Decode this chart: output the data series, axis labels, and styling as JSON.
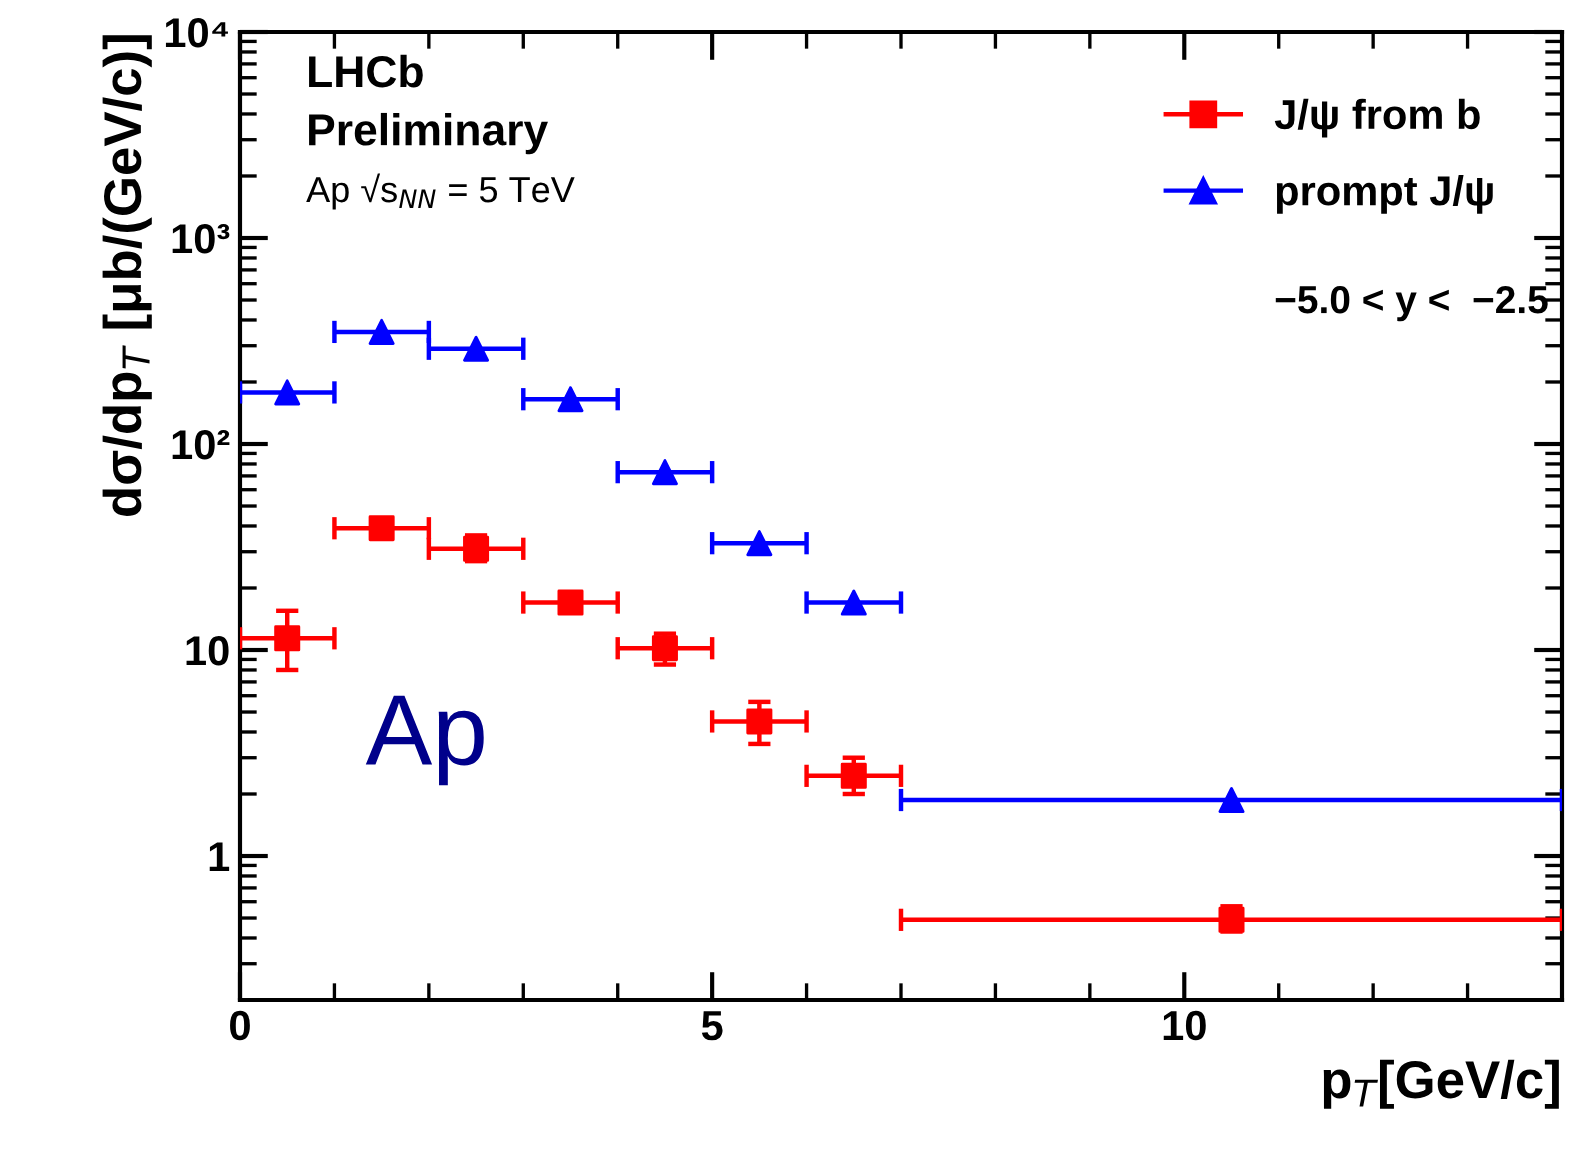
{
  "chart_data": {
    "type": "scatter",
    "xlabel": "p$_{T}$[GeV/c]",
    "ylabel": "dσ/dp$_{T}$ [μb/(GeV/c)]",
    "log": "y",
    "xlim": [
      0,
      14
    ],
    "xticks": [
      0,
      5,
      10
    ],
    "ylim": [
      0.2,
      10000
    ],
    "yticks": [
      {
        "value": 1,
        "label": "1"
      },
      {
        "value": 10,
        "label": "10"
      },
      {
        "value": 100,
        "label": "10²"
      },
      {
        "value": 1000,
        "label": "10³"
      },
      {
        "value": 10000,
        "label": "10⁴"
      }
    ],
    "grid": false,
    "legend": "top right",
    "annotations": [
      "LHCb",
      "Preliminary",
      "Ap √s$_{NN}$ = 5 TeV",
      "−5.0 < y <  −2.5",
      "Ap"
    ],
    "series": [
      {
        "name": "J/ψ from b",
        "color": "#ff0000",
        "marker": "square",
        "x": [
          0.5,
          1.5,
          2.5,
          3.5,
          4.5,
          5.5,
          6.5,
          10.5
        ],
        "values": [
          11.4,
          39,
          31,
          17,
          10.2,
          4.5,
          2.45,
          0.49
        ],
        "errors": [
          [
            8.0,
            15.5
          ],
          [
            35,
            43
          ],
          [
            27,
            36
          ],
          [
            15.5,
            18.5
          ],
          [
            8.5,
            12
          ],
          [
            3.5,
            5.6
          ],
          [
            2.0,
            3.0
          ],
          [
            0.43,
            0.57
          ]
        ],
        "xerrors": [
          0.5,
          0.5,
          0.5,
          0.5,
          0.5,
          0.5,
          0.5,
          3.5
        ]
      },
      {
        "name": "prompt J/ψ",
        "color": "#0000ff",
        "marker": "triangle",
        "x": [
          0.5,
          1.5,
          2.5,
          3.5,
          4.5,
          5.5,
          6.5,
          10.5
        ],
        "values": [
          178,
          350,
          290,
          165,
          73,
          33,
          17,
          1.87
        ],
        "xerrors": [
          0.5,
          0.5,
          0.5,
          0.5,
          0.5,
          0.5,
          0.5,
          3.5
        ]
      }
    ]
  }
}
